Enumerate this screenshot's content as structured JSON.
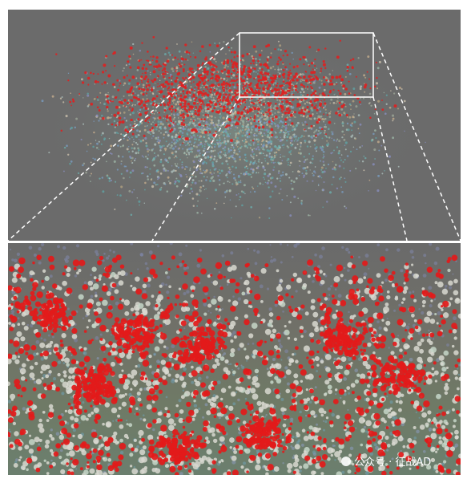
{
  "watermark": {
    "text": "公众号 · 征战AD"
  }
}
